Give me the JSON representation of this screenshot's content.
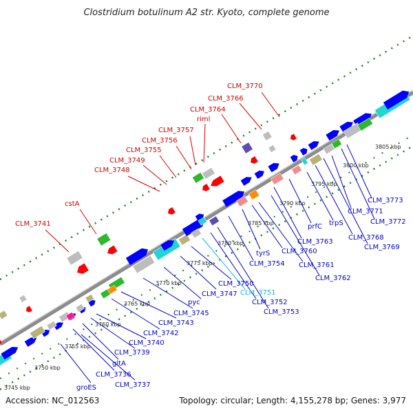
{
  "title": "Clostridium botulinum A2 str. Kyoto, complete genome",
  "accession_label": "Accession: NC_012563",
  "topology_label": "Topology: circular; Length: 4,155,278 bp; Genes: 3,977",
  "colors": {
    "backbone": "#8c8c8c",
    "gc_dots": "#1d7a1d",
    "label_red": "#d10000",
    "label_blue": "#0000c8",
    "label_cyan": "#14b4e6",
    "gene_blue": "#0000ff",
    "gene_red": "#ff0000",
    "gene_green": "#2db82d",
    "gene_gray": "#bdbdbd",
    "gene_cyan": "#22d4d4",
    "gene_tan": "#b8b27a",
    "gene_pink": "#ef8c8c",
    "gene_purple": "#5a4fb0",
    "gene_orange": "#ff8c00",
    "gene_magenta": "#ff1493"
  },
  "scale_ticks": [
    "3745 kbp",
    "3750 kbp",
    "3755 kbp",
    "3760 kbp",
    "3765 kbp",
    "3770 kbp",
    "3775 kbp",
    "3780 kbp",
    "3785 kbp",
    "3790 kbp",
    "3795 kbp",
    "3800 kbp",
    "3805 kbp"
  ],
  "top_labels": [
    "CLM_3741",
    "cstA",
    "CLM_3748",
    "CLM_3749",
    "CLM_3755",
    "CLM_3756",
    "CLM_3757",
    "riml",
    "CLM_3764",
    "CLM_3766",
    "CLM_3770"
  ],
  "bottom_labels": [
    "groES",
    "CLM_3737",
    "CLM_3736",
    "gltA",
    "CLM_3739",
    "CLM_3740",
    "CLM_3742",
    "CLM_3743",
    "CLM_3745",
    "pyc",
    "CLM_3747",
    "CLM_3750",
    "CLM_3751",
    "CLM_3752",
    "CLM_3753",
    "CLM_3754",
    "tyrS",
    "CLM_3760",
    "CLM_3761",
    "CLM_3762",
    "CLM_3763",
    "prfC",
    "trpS",
    "CLM_3768",
    "CLM_3769",
    "CLM_3771",
    "CLM_3772",
    "CLM_3773"
  ]
}
